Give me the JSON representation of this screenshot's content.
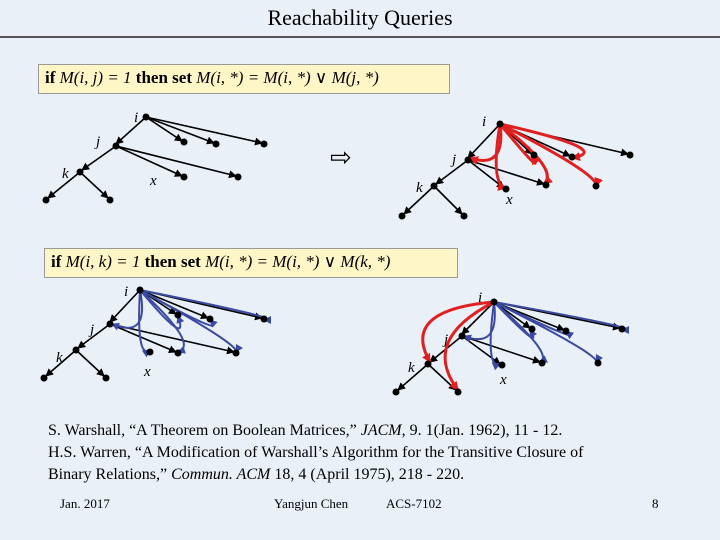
{
  "slide": {
    "title": "Reachability Queries",
    "rule1": {
      "prefix": "if ",
      "cond_text": "M(i, j) = 1",
      "mid": " then set ",
      "assign_text": "M(i, *) = M(i, *) ∨ M(j, *)"
    },
    "rule2": {
      "prefix": "if ",
      "cond_text": "M(i, k) = 1",
      "mid": " then set ",
      "assign_text": "M(i, *) = M(i, *) ∨ M(k, *)"
    },
    "labels": {
      "i": "i",
      "j": "j",
      "k": "k",
      "x": "x"
    },
    "arrow_symbol": "⇨",
    "references": {
      "ref1_a": "S. Warshall, “A Theorem on Boolean Matrices,” ",
      "ref1_journal": "JACM",
      "ref1_b": ", 9. 1(Jan. 1962), 11 - 12.",
      "ref2_line1": "H.S. Warren, “A Modification of Warshall’s Algorithm for the Transitive Closure of",
      "ref2_line2_a": "Binary Relations,” ",
      "ref2_journal": "Commun. ACM",
      "ref2_line2_b": " 18, 4 (April 1975), 218 - 220."
    },
    "footer": {
      "date": "Jan. 2017",
      "author": "Yangjun Chen",
      "course": "ACS-7102",
      "page": "8"
    },
    "colors": {
      "background": "#eaf0f8",
      "highlight_box": "#fff6c8",
      "red_edge": "#e02020",
      "blue_edge": "#3a4aa0",
      "black_edge": "#000000"
    }
  }
}
